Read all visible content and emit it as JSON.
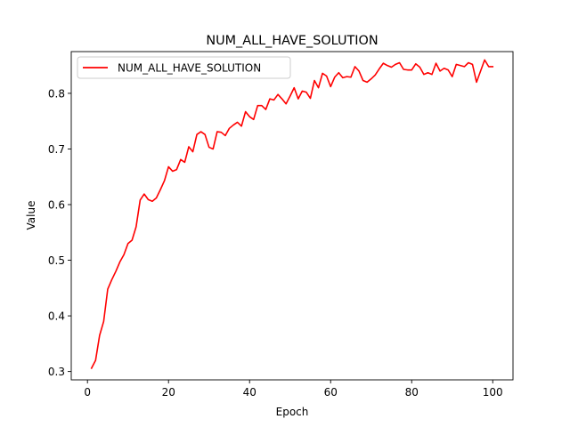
{
  "chart_data": {
    "type": "line",
    "title": "NUM_ALL_HAVE_SOLUTION",
    "xlabel": "Epoch",
    "ylabel": "Value",
    "xlim": [
      -4,
      105
    ],
    "ylim": [
      0.285,
      0.875
    ],
    "xticks": [
      "0",
      "20",
      "40",
      "60",
      "80",
      "100"
    ],
    "yticks": [
      "0.3",
      "0.4",
      "0.5",
      "0.6",
      "0.7",
      "0.8"
    ],
    "xtick_values": [
      0,
      20,
      40,
      60,
      80,
      100
    ],
    "ytick_values": [
      0.3,
      0.4,
      0.5,
      0.6,
      0.7,
      0.8
    ],
    "grid": false,
    "legend_position": "upper left",
    "series": [
      {
        "name": "NUM_ALL_HAVE_SOLUTION",
        "color": "#ff0000",
        "x": [
          1,
          2,
          3,
          4,
          5,
          6,
          7,
          8,
          9,
          10,
          11,
          12,
          13,
          14,
          15,
          16,
          17,
          18,
          19,
          20,
          21,
          22,
          23,
          24,
          25,
          26,
          27,
          28,
          29,
          30,
          31,
          32,
          33,
          34,
          35,
          36,
          37,
          38,
          39,
          40,
          41,
          42,
          43,
          44,
          45,
          46,
          47,
          48,
          49,
          50,
          51,
          52,
          53,
          54,
          55,
          56,
          57,
          58,
          59,
          60,
          61,
          62,
          63,
          64,
          65,
          66,
          67,
          68,
          69,
          70,
          71,
          72,
          73,
          74,
          75,
          76,
          77,
          78,
          79,
          80,
          81,
          82,
          83,
          84,
          85,
          86,
          87,
          88,
          89,
          90,
          91,
          92,
          93,
          94,
          95,
          96,
          97,
          98,
          99,
          100
        ],
        "values": [
          0.306,
          0.32,
          0.365,
          0.39,
          0.448,
          0.465,
          0.48,
          0.497,
          0.51,
          0.53,
          0.536,
          0.56,
          0.608,
          0.619,
          0.609,
          0.606,
          0.612,
          0.627,
          0.643,
          0.668,
          0.66,
          0.663,
          0.681,
          0.676,
          0.704,
          0.695,
          0.726,
          0.731,
          0.726,
          0.703,
          0.7,
          0.731,
          0.73,
          0.724,
          0.737,
          0.743,
          0.748,
          0.741,
          0.767,
          0.758,
          0.753,
          0.778,
          0.778,
          0.771,
          0.79,
          0.788,
          0.798,
          0.79,
          0.781,
          0.795,
          0.81,
          0.79,
          0.804,
          0.802,
          0.791,
          0.823,
          0.81,
          0.836,
          0.831,
          0.812,
          0.829,
          0.837,
          0.828,
          0.83,
          0.829,
          0.848,
          0.84,
          0.823,
          0.82,
          0.826,
          0.833,
          0.844,
          0.854,
          0.85,
          0.847,
          0.852,
          0.855,
          0.843,
          0.842,
          0.842,
          0.853,
          0.847,
          0.834,
          0.837,
          0.834,
          0.854,
          0.84,
          0.845,
          0.842,
          0.83,
          0.852,
          0.85,
          0.848,
          0.855,
          0.852,
          0.82,
          0.84,
          0.86,
          0.848,
          0.848
        ]
      }
    ]
  }
}
